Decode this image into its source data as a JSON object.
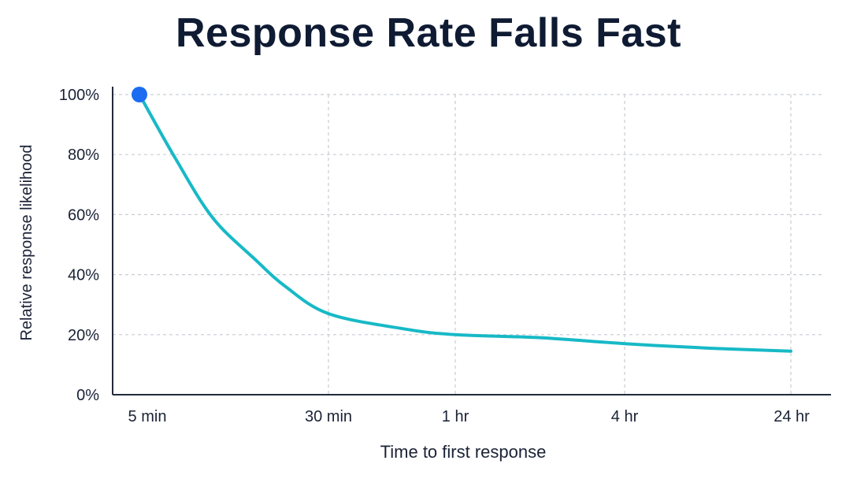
{
  "chart_data": {
    "type": "line",
    "title": "Response Rate Falls Fast",
    "xlabel": "Time to first response",
    "ylabel": "Relative response likelihood",
    "x_ticks": [
      "5 min",
      "30 min",
      "1 hr",
      "4 hr",
      "24 hr"
    ],
    "y_ticks": [
      "0%",
      "20%",
      "40%",
      "60%",
      "80%",
      "100%"
    ],
    "ylim": [
      0,
      100
    ],
    "grid": true,
    "x_minutes": [
      5,
      7,
      10,
      15,
      20,
      30,
      45,
      60,
      120,
      240,
      600,
      1440
    ],
    "values": [
      100,
      79,
      59,
      45,
      36,
      27,
      22,
      20,
      19,
      17,
      15.5,
      14.5
    ],
    "highlight_point": {
      "x": "5 min",
      "y": 100
    },
    "colors": {
      "line": "#17b9c6",
      "marker": "#1c6cf2",
      "grid": "#c8ccd3",
      "axis": "#222b3c"
    }
  }
}
